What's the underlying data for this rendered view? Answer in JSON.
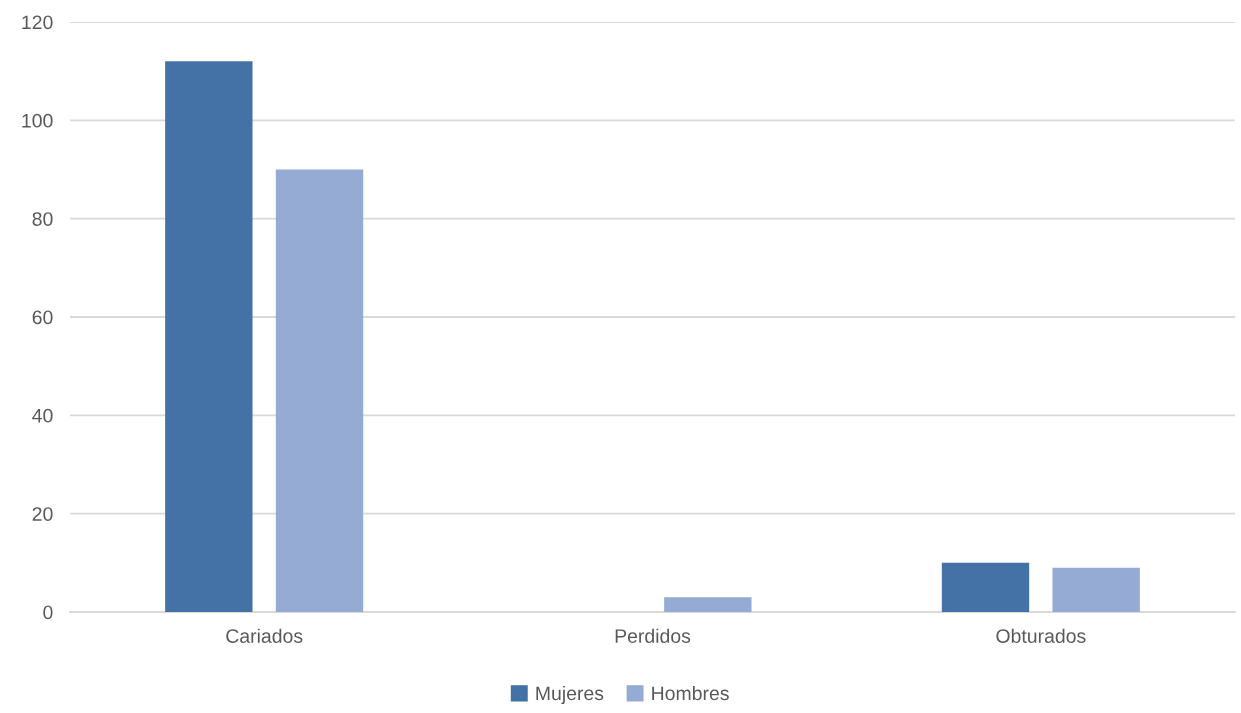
{
  "chart_data": {
    "type": "bar",
    "categories": [
      "Cariados",
      "Perdidos",
      "Obturados"
    ],
    "series": [
      {
        "name": "Mujeres",
        "color": "#4472a6",
        "values": [
          112,
          0,
          10
        ]
      },
      {
        "name": "Hombres",
        "color": "#95abd3",
        "values": [
          90,
          3,
          9
        ]
      }
    ],
    "ylim": [
      0,
      120
    ],
    "yticks": [
      0,
      20,
      40,
      60,
      80,
      100,
      120
    ],
    "grid": "y",
    "legend": "bottom"
  }
}
